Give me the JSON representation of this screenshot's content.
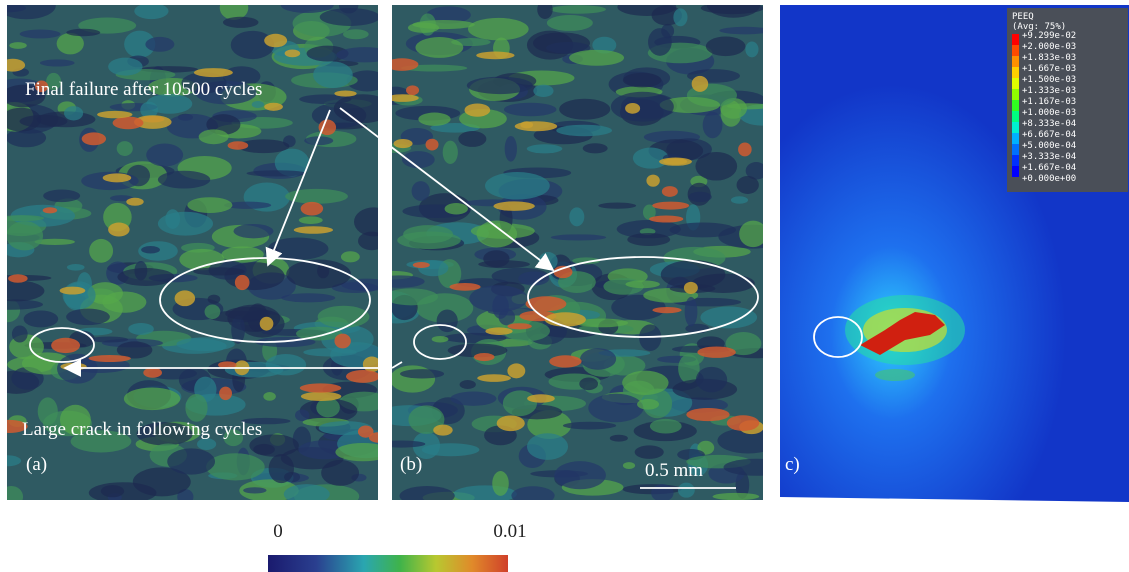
{
  "panel_a": {
    "annotation_top": "Final failure after 10500 cycles",
    "annotation_bottom": "Large crack in following cycles",
    "label": "(a)"
  },
  "panel_b": {
    "label": "(b)",
    "scale_bar": "0.5 mm"
  },
  "panel_c": {
    "label": "c)",
    "legend": {
      "title": "PEEQ",
      "subtitle": "(Avg: 75%)",
      "values": [
        "+9.299e-02",
        "+2.000e-03",
        "+1.833e-03",
        "+1.667e-03",
        "+1.500e-03",
        "+1.333e-03",
        "+1.167e-03",
        "+1.000e-03",
        "+8.333e-04",
        "+6.667e-04",
        "+5.000e-04",
        "+3.333e-04",
        "+1.667e-04",
        "+0.000e+00"
      ]
    }
  },
  "colorbar": {
    "min_label": "0",
    "max_label": "0.01"
  }
}
